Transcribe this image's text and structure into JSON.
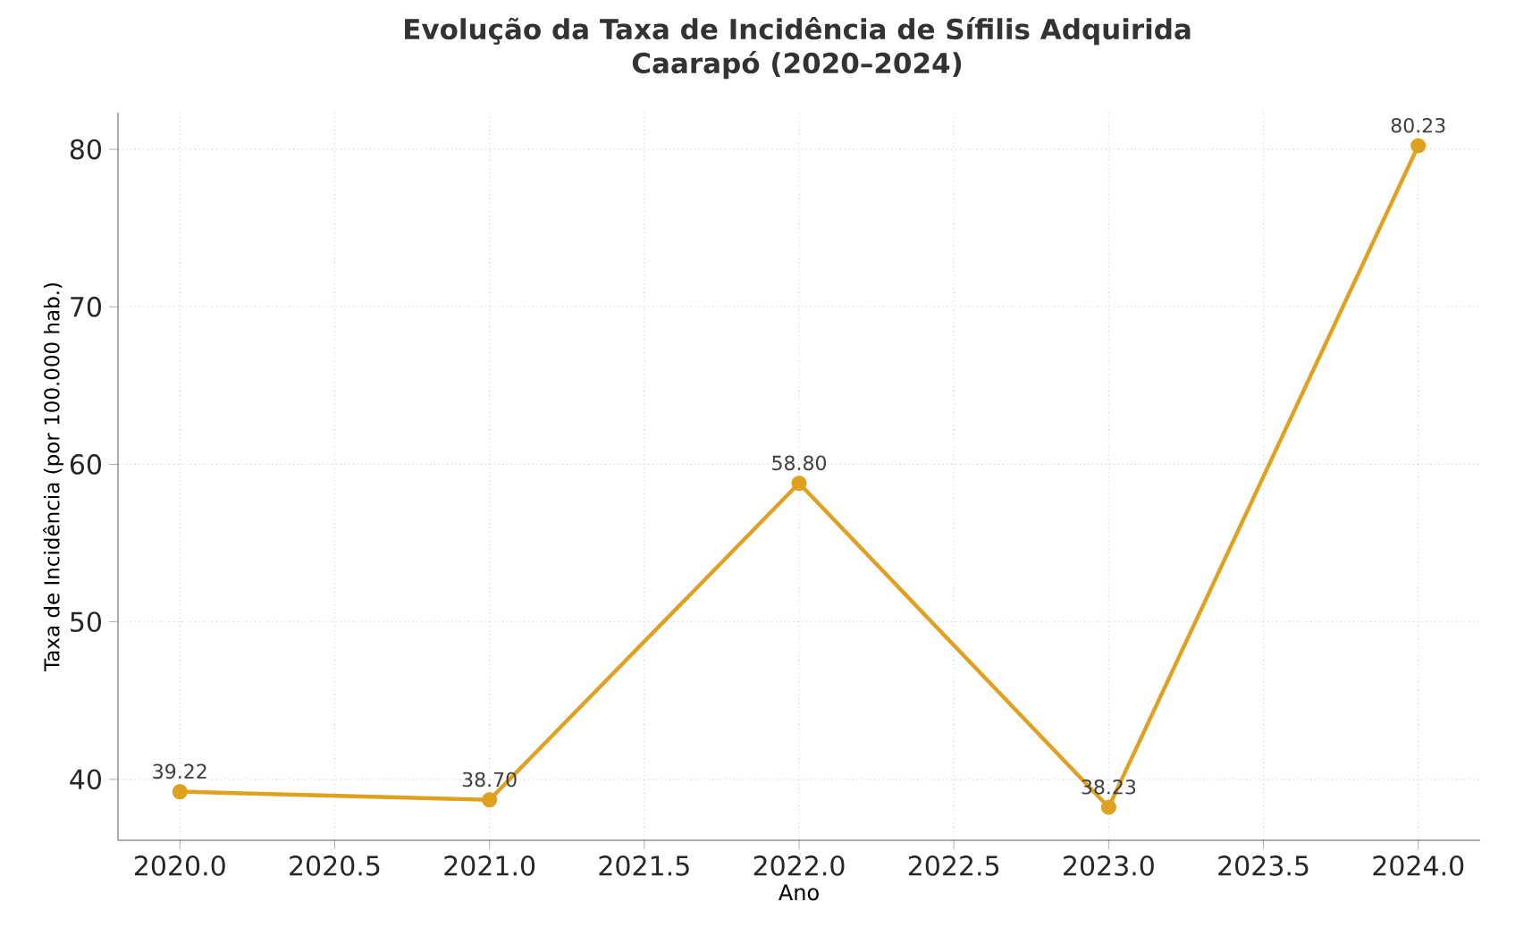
{
  "chart_data": {
    "type": "line",
    "title": "Evolução da Taxa de Incidência de Sífilis Adquirida",
    "subtitle": "Caarapó (2020–2024)",
    "xlabel": "Ano",
    "ylabel": "Taxa de Incidência (por 100.000 hab.)",
    "x": [
      2020,
      2021,
      2022,
      2023,
      2024
    ],
    "series": [
      {
        "color": "#e0a020",
        "values": [
          39.22,
          38.7,
          58.8,
          38.23,
          80.23
        ],
        "value_labels": [
          "39.22",
          "38.70",
          "58.80",
          "38.23",
          "80.23"
        ]
      }
    ],
    "xlim": [
      2019.8,
      2024.2
    ],
    "ylim": [
      36.13,
      82.33
    ],
    "xticks": [
      {
        "value": 2020,
        "label": "2020.0"
      },
      {
        "value": 2020.5,
        "label": "2020.5"
      },
      {
        "value": 2021,
        "label": "2021.0"
      },
      {
        "value": 2021.5,
        "label": "2021.5"
      },
      {
        "value": 2022,
        "label": "2022.0"
      },
      {
        "value": 2022.5,
        "label": "2022.5"
      },
      {
        "value": 2023,
        "label": "2023.0"
      },
      {
        "value": 2023.5,
        "label": "2023.5"
      },
      {
        "value": 2024,
        "label": "2024.0"
      }
    ],
    "yticks": [
      40,
      50,
      60,
      70,
      80
    ],
    "grid": true,
    "marker": "circle",
    "line_style": "solid"
  }
}
